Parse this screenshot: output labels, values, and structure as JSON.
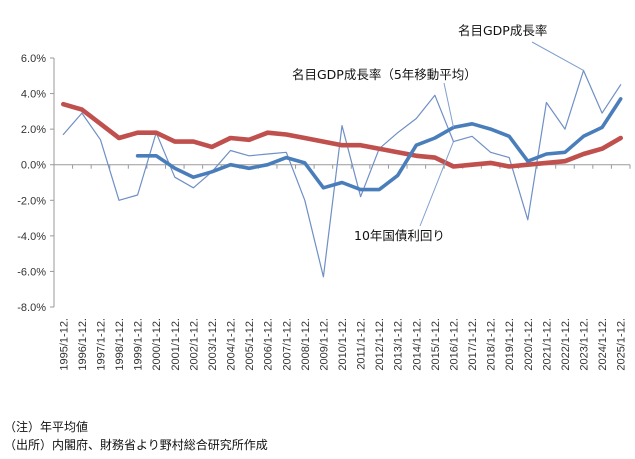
{
  "chart_data": {
    "type": "line",
    "categories": [
      "1995/1-12.",
      "1996/1-12.",
      "1997/1-12.",
      "1998/1-12.",
      "1999/1-12.",
      "2000/1-12.",
      "2001/1-12.",
      "2002/1-12.",
      "2003/1-12.",
      "2004/1-12.",
      "2005/1-12.",
      "2006/1-12.",
      "2007/1-12.",
      "2008/1-12.",
      "2009/1-12.",
      "2010/1-12.",
      "2011/1-12.",
      "2012/1-12.",
      "2013/1-12.",
      "2014/1-12.",
      "2015/1-12.",
      "2016/1-12.",
      "2017/1-12.",
      "2018/1-12.",
      "2019/1-12.",
      "2020/1-12.",
      "2021/1-12.",
      "2022/1-12.",
      "2023/1-12.",
      "2024/1-12.",
      "2025/1-12."
    ],
    "y_ticks": [
      "6.0%",
      "4.0%",
      "2.0%",
      "0.0%",
      "-2.0%",
      "-4.0%",
      "-6.0%",
      "-8.0%"
    ],
    "ylim": [
      -8,
      6
    ],
    "grid": false,
    "series": [
      {
        "name": "名目GDP成長率",
        "color": "#6F8FC5",
        "values": [
          1.7,
          2.9,
          1.4,
          -2.0,
          -1.7,
          1.8,
          -0.7,
          -1.3,
          -0.4,
          0.8,
          0.5,
          0.6,
          0.7,
          -2.0,
          -6.3,
          2.2,
          -1.8,
          0.9,
          1.8,
          2.6,
          3.9,
          1.3,
          1.6,
          0.7,
          0.4,
          -3.1,
          3.5,
          2.0,
          5.3,
          2.9,
          4.5
        ]
      },
      {
        "name": "名目GDP成長率（5年移動平均）",
        "color": "#4A7EBB",
        "values": [
          null,
          null,
          null,
          null,
          0.5,
          0.5,
          -0.2,
          -0.7,
          -0.4,
          0.0,
          -0.2,
          0.0,
          0.4,
          0.1,
          -1.3,
          -1.0,
          -1.4,
          -1.4,
          -0.6,
          1.1,
          1.5,
          2.1,
          2.3,
          2.0,
          1.6,
          0.2,
          0.6,
          0.7,
          1.6,
          2.1,
          3.7
        ]
      },
      {
        "name": "10年国債利回り",
        "color": "#C0504D",
        "values": [
          3.4,
          3.1,
          2.3,
          1.5,
          1.8,
          1.8,
          1.3,
          1.3,
          1.0,
          1.5,
          1.4,
          1.8,
          1.7,
          1.5,
          1.3,
          1.1,
          1.1,
          0.9,
          0.7,
          0.5,
          0.4,
          -0.1,
          0.0,
          0.1,
          -0.1,
          0.0,
          0.1,
          0.2,
          0.6,
          0.9,
          1.5
        ]
      }
    ],
    "annotations": {
      "nominal_gdp": "名目GDP成長率",
      "nominal_gdp_ma5": "名目GDP成長率（5年移動平均）",
      "jgb10": "10年国債利回り"
    }
  },
  "notes": {
    "note1": "（注）年平均値",
    "note2": "（出所）内閣府、財務省より野村総合研究所作成"
  }
}
